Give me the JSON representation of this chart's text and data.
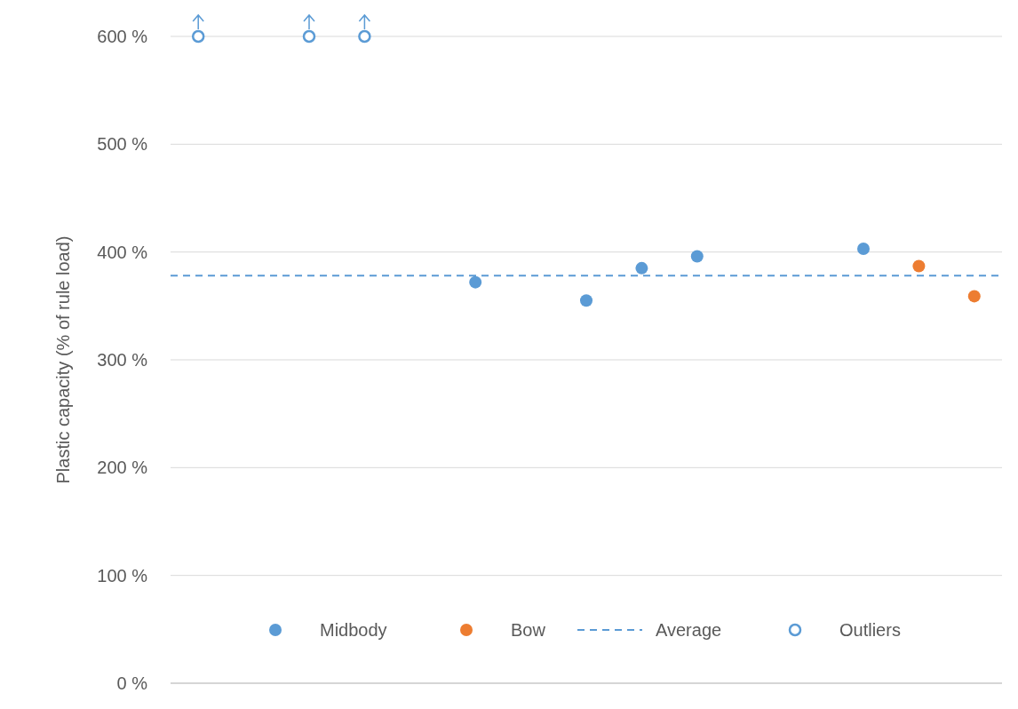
{
  "chart_data": {
    "type": "scatter",
    "ylabel": "Plastic capacity (% of rule load)",
    "categories": [
      null,
      null,
      null,
      null,
      null,
      null,
      null,
      null,
      null,
      null,
      null,
      null,
      null,
      null,
      null
    ],
    "series": [
      {
        "name": "Midbody",
        "color": "#5b9bd5",
        "values": [
          null,
          null,
          null,
          null,
          null,
          372,
          null,
          355,
          385,
          396,
          null,
          null,
          403,
          null,
          null
        ]
      },
      {
        "name": "Bow",
        "color": "#ed7d31",
        "values": [
          null,
          null,
          null,
          null,
          null,
          null,
          null,
          null,
          null,
          null,
          null,
          null,
          null,
          387,
          359
        ]
      },
      {
        "name": "Outliers",
        "color": "#5b9bd5",
        "values": [
          600,
          null,
          600,
          600,
          null,
          null,
          null,
          null,
          null,
          null,
          null,
          null,
          null,
          null,
          null
        ]
      }
    ],
    "ref_lines": [
      {
        "axis": "y",
        "value": 378,
        "label": "Average",
        "color": "#5b9bd5",
        "line_style": "dashed"
      }
    ],
    "ylim": [
      0,
      600
    ],
    "yticks": [
      {
        "value": 0,
        "label": "0 %"
      },
      {
        "value": 100,
        "label": "100 %"
      },
      {
        "value": 200,
        "label": "200 %"
      },
      {
        "value": 300,
        "label": "300 %"
      },
      {
        "value": 400,
        "label": "400 %"
      },
      {
        "value": 500,
        "label": "500 %"
      },
      {
        "value": 600,
        "label": "600 %"
      }
    ],
    "grid": "y",
    "legend": "bottom",
    "marker": "circle"
  }
}
